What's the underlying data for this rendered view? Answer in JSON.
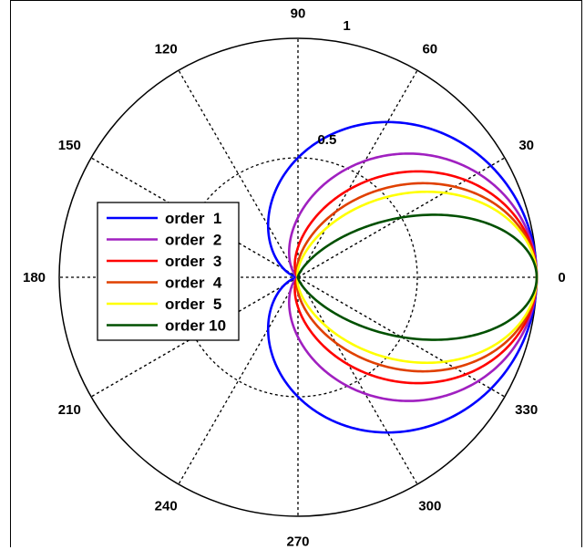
{
  "chart_data": {
    "type": "line",
    "subtype": "polar",
    "angle_unit": "degrees",
    "angle_ticks": [
      0,
      30,
      60,
      90,
      120,
      150,
      180,
      210,
      240,
      270,
      300,
      330
    ],
    "angle_tick_labels": [
      "0",
      "30",
      "60",
      "90",
      "120",
      "150",
      "180",
      "210",
      "240",
      "270",
      "300",
      "330"
    ],
    "r_ticks": [
      0.5,
      1
    ],
    "r_tick_labels": [
      "0.5",
      "1"
    ],
    "rlim": [
      0,
      1
    ],
    "grid": true,
    "legend_position": "left",
    "series": [
      {
        "name": "order  1",
        "order": 1,
        "color": "#0000ff",
        "formula": "r = ((1 + cos θ)/2)^n"
      },
      {
        "name": "order  2",
        "order": 2,
        "color": "#a020c0",
        "formula": "r = ((1 + cos θ)/2)^n"
      },
      {
        "name": "order  3",
        "order": 3,
        "color": "#ff0000",
        "formula": "r = ((1 + cos θ)/2)^n"
      },
      {
        "name": "order  4",
        "order": 4,
        "color": "#e04000",
        "formula": "r = ((1 + cos θ)/2)^n"
      },
      {
        "name": "order  5",
        "order": 5,
        "color": "#ffff00",
        "formula": "r = ((1 + cos θ)/2)^n"
      },
      {
        "name": "order 10",
        "order": 10,
        "color": "#005000",
        "formula": "r = ((1 + cos θ)/2)^n"
      }
    ]
  }
}
